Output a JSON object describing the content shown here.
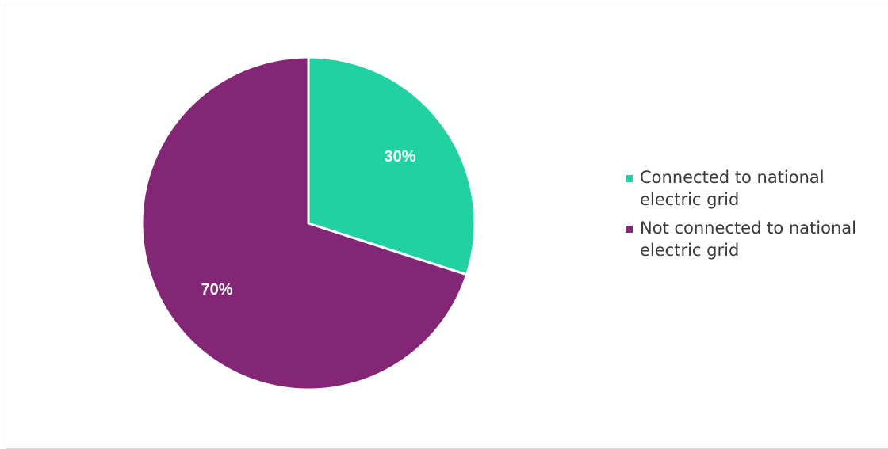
{
  "chart_data": {
    "type": "pie",
    "title": "",
    "categories": [
      "Connected to national electric grid",
      "Not connected to national electric grid"
    ],
    "values": [
      30,
      70
    ],
    "value_labels": [
      "30%",
      "70%"
    ],
    "colors": [
      "#22d1a2",
      "#842676"
    ],
    "start_angle_deg": 0,
    "direction": "clockwise",
    "legend_position": "right"
  }
}
